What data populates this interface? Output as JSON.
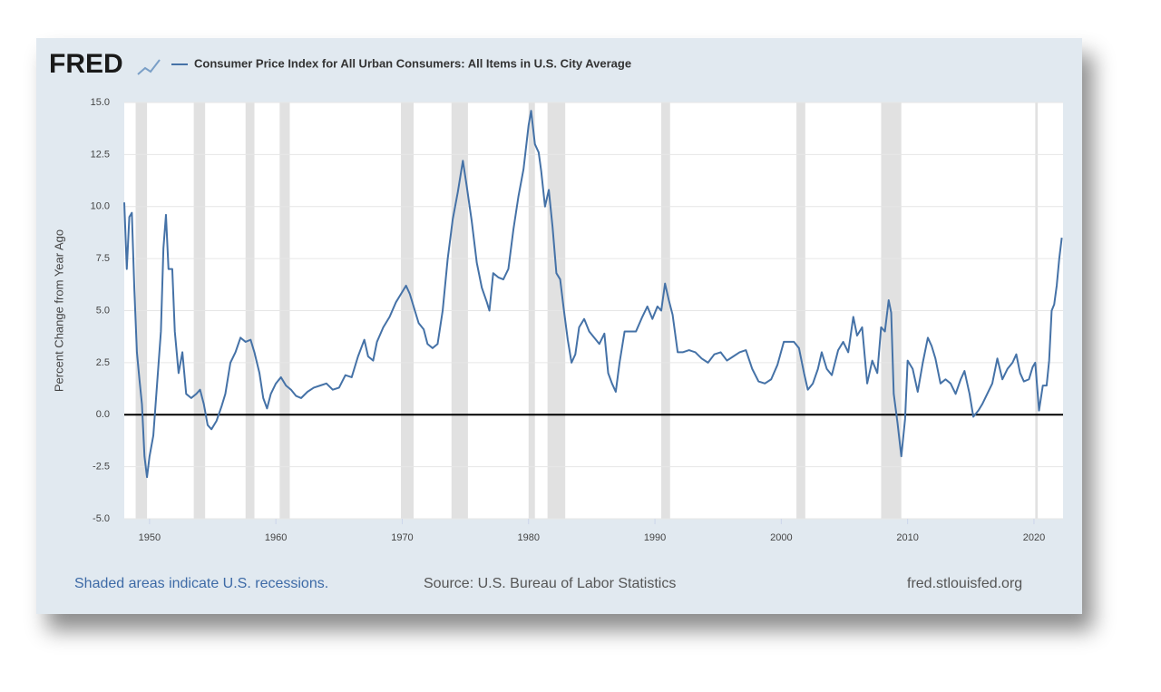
{
  "chart_data": {
    "type": "line",
    "logo": "FRED",
    "y_label": "Percent Change from Year Ago",
    "notes": {
      "recessions": "Shaded areas indicate U.S. recessions.",
      "source": "Source: U.S. Bureau of Labor Statistics",
      "site": "fred.stlouisfed.org"
    },
    "xlim": [
      1948,
      2022.3
    ],
    "xticks": [
      1950,
      1960,
      1970,
      1980,
      1990,
      2000,
      2010,
      2020
    ],
    "ylim": [
      -5,
      15
    ],
    "yticks": [
      {
        "value": -5,
        "label": "-5.0"
      },
      {
        "value": -2.5,
        "label": "-2.5"
      },
      {
        "value": 0,
        "label": "0.0"
      },
      {
        "value": 2.5,
        "label": "2.5"
      },
      {
        "value": 5,
        "label": "5.0"
      },
      {
        "value": 7.5,
        "label": "7.5"
      },
      {
        "value": 10,
        "label": "10.0"
      },
      {
        "value": 12.5,
        "label": "12.5"
      },
      {
        "value": 15,
        "label": "15.0"
      }
    ],
    "grid": true,
    "recessions": [
      {
        "start": 1948.9,
        "end": 1949.8
      },
      {
        "start": 1953.5,
        "end": 1954.4
      },
      {
        "start": 1957.6,
        "end": 1958.3
      },
      {
        "start": 1960.3,
        "end": 1961.1
      },
      {
        "start": 1969.9,
        "end": 1970.9
      },
      {
        "start": 1973.9,
        "end": 1975.2
      },
      {
        "start": 1980.0,
        "end": 1980.5
      },
      {
        "start": 1981.5,
        "end": 1982.9
      },
      {
        "start": 1990.5,
        "end": 1991.2
      },
      {
        "start": 2001.2,
        "end": 2001.9
      },
      {
        "start": 2007.9,
        "end": 2009.5
      },
      {
        "start": 2020.1,
        "end": 2020.3
      }
    ],
    "series": [
      {
        "name": "Consumer Price Index for All Urban Consumers: All Items in U.S. City Average",
        "color": "#4572a7",
        "x": [
          1948.0,
          1948.2,
          1948.4,
          1948.6,
          1948.8,
          1949.0,
          1949.2,
          1949.4,
          1949.6,
          1949.8,
          1950.0,
          1950.3,
          1950.6,
          1950.9,
          1951.1,
          1951.3,
          1951.5,
          1951.8,
          1952.0,
          1952.3,
          1952.6,
          1952.9,
          1953.3,
          1953.7,
          1954.0,
          1954.3,
          1954.6,
          1954.9,
          1955.3,
          1955.7,
          1956.0,
          1956.4,
          1956.8,
          1957.2,
          1957.6,
          1958.0,
          1958.3,
          1958.7,
          1959.0,
          1959.3,
          1959.6,
          1960.0,
          1960.4,
          1960.8,
          1961.2,
          1961.6,
          1962.0,
          1962.5,
          1963.0,
          1963.5,
          1964.0,
          1964.5,
          1965.0,
          1965.5,
          1966.0,
          1966.5,
          1967.0,
          1967.3,
          1967.7,
          1968.0,
          1968.5,
          1969.0,
          1969.5,
          1970.0,
          1970.3,
          1970.6,
          1971.0,
          1971.3,
          1971.7,
          1972.0,
          1972.4,
          1972.8,
          1973.2,
          1973.6,
          1974.0,
          1974.4,
          1974.8,
          1975.1,
          1975.5,
          1975.9,
          1976.3,
          1976.7,
          1976.9,
          1977.2,
          1977.6,
          1978.0,
          1978.4,
          1978.8,
          1979.2,
          1979.6,
          1980.0,
          1980.2,
          1980.5,
          1980.8,
          1981.0,
          1981.3,
          1981.6,
          1981.9,
          1982.2,
          1982.5,
          1982.8,
          1983.1,
          1983.4,
          1983.7,
          1984.0,
          1984.4,
          1984.8,
          1985.2,
          1985.6,
          1986.0,
          1986.3,
          1986.6,
          1986.9,
          1987.2,
          1987.6,
          1988.0,
          1988.5,
          1989.0,
          1989.4,
          1989.8,
          1990.2,
          1990.5,
          1990.8,
          1991.1,
          1991.4,
          1991.8,
          1992.2,
          1992.7,
          1993.2,
          1993.7,
          1994.2,
          1994.7,
          1995.2,
          1995.7,
          1996.2,
          1996.7,
          1997.2,
          1997.7,
          1998.2,
          1998.7,
          1999.2,
          1999.7,
          2000.2,
          2000.6,
          2001.0,
          2001.4,
          2001.8,
          2002.1,
          2002.5,
          2002.9,
          2003.2,
          2003.6,
          2004.0,
          2004.5,
          2004.9,
          2005.3,
          2005.7,
          2006.0,
          2006.4,
          2006.8,
          2007.2,
          2007.6,
          2007.9,
          2008.2,
          2008.5,
          2008.7,
          2008.9,
          2009.2,
          2009.5,
          2009.8,
          2010.0,
          2010.4,
          2010.8,
          2011.2,
          2011.6,
          2011.9,
          2012.2,
          2012.6,
          2013.0,
          2013.4,
          2013.8,
          2014.2,
          2014.5,
          2014.9,
          2015.2,
          2015.6,
          2015.9,
          2016.3,
          2016.7,
          2017.1,
          2017.5,
          2017.9,
          2018.3,
          2018.6,
          2018.9,
          2019.2,
          2019.6,
          2019.9,
          2020.1,
          2020.4,
          2020.7,
          2021.0,
          2021.2,
          2021.4,
          2021.6,
          2021.8,
          2022.0,
          2022.2
        ],
        "values": [
          10.2,
          7.0,
          9.5,
          9.7,
          6.0,
          3.0,
          1.7,
          0.5,
          -2.0,
          -3.0,
          -2.0,
          -1.0,
          1.5,
          4.0,
          8.0,
          9.6,
          7.0,
          7.0,
          4.0,
          2.0,
          3.0,
          1.0,
          0.8,
          1.0,
          1.2,
          0.5,
          -0.5,
          -0.7,
          -0.3,
          0.4,
          1.0,
          2.5,
          3.0,
          3.7,
          3.5,
          3.6,
          3.0,
          2.0,
          0.8,
          0.3,
          1.0,
          1.5,
          1.8,
          1.4,
          1.2,
          0.9,
          0.8,
          1.1,
          1.3,
          1.4,
          1.5,
          1.2,
          1.3,
          1.9,
          1.8,
          2.8,
          3.6,
          2.8,
          2.6,
          3.5,
          4.2,
          4.7,
          5.4,
          5.9,
          6.2,
          5.8,
          5.0,
          4.4,
          4.1,
          3.4,
          3.2,
          3.4,
          5.0,
          7.5,
          9.4,
          10.7,
          12.2,
          11.0,
          9.3,
          7.3,
          6.1,
          5.4,
          5.0,
          6.8,
          6.6,
          6.5,
          7.0,
          8.9,
          10.5,
          11.8,
          13.9,
          14.6,
          13.0,
          12.6,
          11.7,
          10.0,
          10.8,
          9.0,
          6.8,
          6.5,
          5.0,
          3.6,
          2.5,
          2.9,
          4.2,
          4.6,
          4.0,
          3.7,
          3.4,
          3.9,
          2.0,
          1.5,
          1.1,
          2.5,
          4.0,
          4.0,
          4.0,
          4.7,
          5.2,
          4.6,
          5.2,
          5.0,
          6.3,
          5.5,
          4.8,
          3.0,
          3.0,
          3.1,
          3.0,
          2.7,
          2.5,
          2.9,
          3.0,
          2.6,
          2.8,
          3.0,
          3.1,
          2.2,
          1.6,
          1.5,
          1.7,
          2.4,
          3.5,
          3.5,
          3.5,
          3.2,
          2.0,
          1.2,
          1.5,
          2.2,
          3.0,
          2.2,
          1.9,
          3.1,
          3.5,
          3.0,
          4.7,
          3.8,
          4.2,
          1.5,
          2.6,
          2.0,
          4.2,
          4.0,
          5.5,
          4.9,
          1.0,
          -0.4,
          -2.0,
          -0.2,
          2.6,
          2.2,
          1.1,
          2.5,
          3.7,
          3.3,
          2.7,
          1.5,
          1.7,
          1.5,
          1.0,
          1.7,
          2.1,
          1.0,
          -0.1,
          0.2,
          0.5,
          1.0,
          1.5,
          2.7,
          1.7,
          2.2,
          2.5,
          2.9,
          2.0,
          1.6,
          1.7,
          2.3,
          2.5,
          0.2,
          1.4,
          1.4,
          2.6,
          5.0,
          5.3,
          6.2,
          7.5,
          8.5
        ]
      }
    ]
  }
}
